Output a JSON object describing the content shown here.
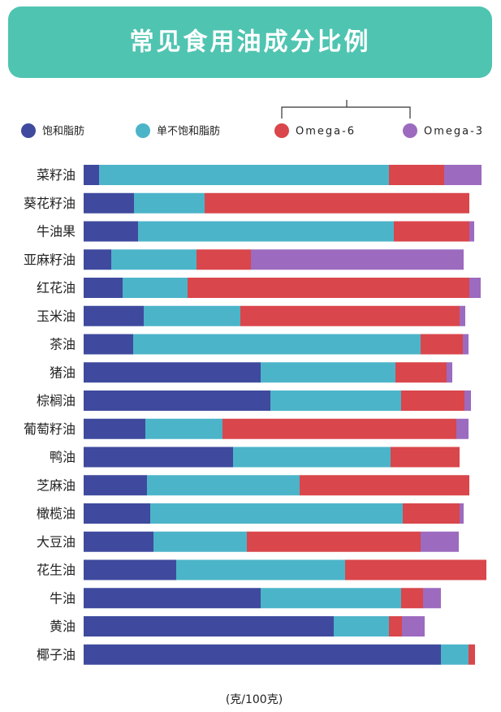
{
  "chart_data": {
    "type": "bar",
    "orientation": "horizontal",
    "stacked": true,
    "title": "常见食用油成分比例",
    "x_label": "(克/100克)",
    "categories": [
      "菜籽油",
      "葵花籽油",
      "牛油果",
      "亚麻籽油",
      "红花油",
      "玉米油",
      "茶油",
      "猪油",
      "棕榈油",
      "葡萄籽油",
      "鸭油",
      "芝麻油",
      "橄榄油",
      "大豆油",
      "花生油",
      "牛油",
      "黄油",
      "椰子油"
    ],
    "series": [
      {
        "name": "饱和脂肪",
        "color": "#3f4a9e",
        "values": [
          3.8,
          12.4,
          13.4,
          6.8,
          9.6,
          14.8,
          12.2,
          43.6,
          46,
          15.2,
          36.8,
          15.6,
          16.4,
          17.2,
          22.8,
          43.6,
          61.6,
          88
        ]
      },
      {
        "name": "单不饱和脂肪",
        "color": "#4cb4c9",
        "values": [
          71.4,
          17.4,
          63,
          21,
          16,
          23.8,
          70.8,
          33.2,
          32.2,
          19,
          38.8,
          37.6,
          62.2,
          23,
          41.6,
          34.6,
          13.6,
          6.8
        ]
      },
      {
        "name": "Omega-6",
        "color": "#d9464b",
        "values": [
          13.6,
          65.2,
          18.6,
          13.4,
          69.4,
          54,
          10.4,
          12.6,
          15.6,
          57.6,
          17,
          41.8,
          14,
          42.8,
          34.8,
          5.4,
          3.2,
          1.6
        ]
      },
      {
        "name": "Omega-3",
        "color": "#9c6bbf",
        "values": [
          9.2,
          0,
          1.2,
          52.4,
          2.8,
          1.4,
          1.4,
          1.4,
          1.6,
          3,
          0,
          0,
          1,
          9.4,
          0,
          4.4,
          5.6,
          0
        ]
      }
    ]
  }
}
